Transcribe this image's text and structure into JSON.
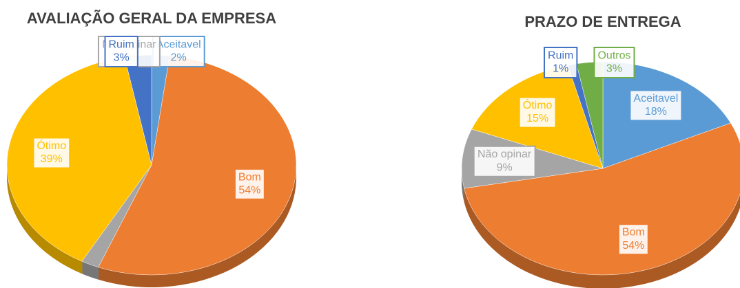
{
  "chart_data": [
    {
      "type": "pie",
      "title": "AVALIAÇÃO GERAL DA EMPRESA",
      "categories": [
        "Aceitavel",
        "Bom",
        "Não opinar",
        "Ótimo",
        "Ruim"
      ],
      "values": [
        2,
        54,
        2,
        39,
        3
      ],
      "value_labels": [
        "2%",
        "54%",
        "2%",
        "39%",
        "3%"
      ],
      "colors": [
        "#5b9bd5",
        "#ed7d31",
        "#a5a5a5",
        "#ffc000",
        "#4472c4"
      ]
    },
    {
      "type": "pie",
      "title": "PRAZO DE ENTREGA",
      "categories": [
        "Aceitavel",
        "Bom",
        "Não opinar",
        "Ótimo",
        "Ruim",
        "Outros"
      ],
      "values": [
        18,
        54,
        9,
        15,
        1,
        3
      ],
      "value_labels": [
        "18%",
        "54%",
        "9%",
        "15%",
        "1%",
        "3%"
      ],
      "colors": [
        "#5b9bd5",
        "#ed7d31",
        "#a5a5a5",
        "#ffc000",
        "#4472c4",
        "#70ad47"
      ]
    }
  ]
}
